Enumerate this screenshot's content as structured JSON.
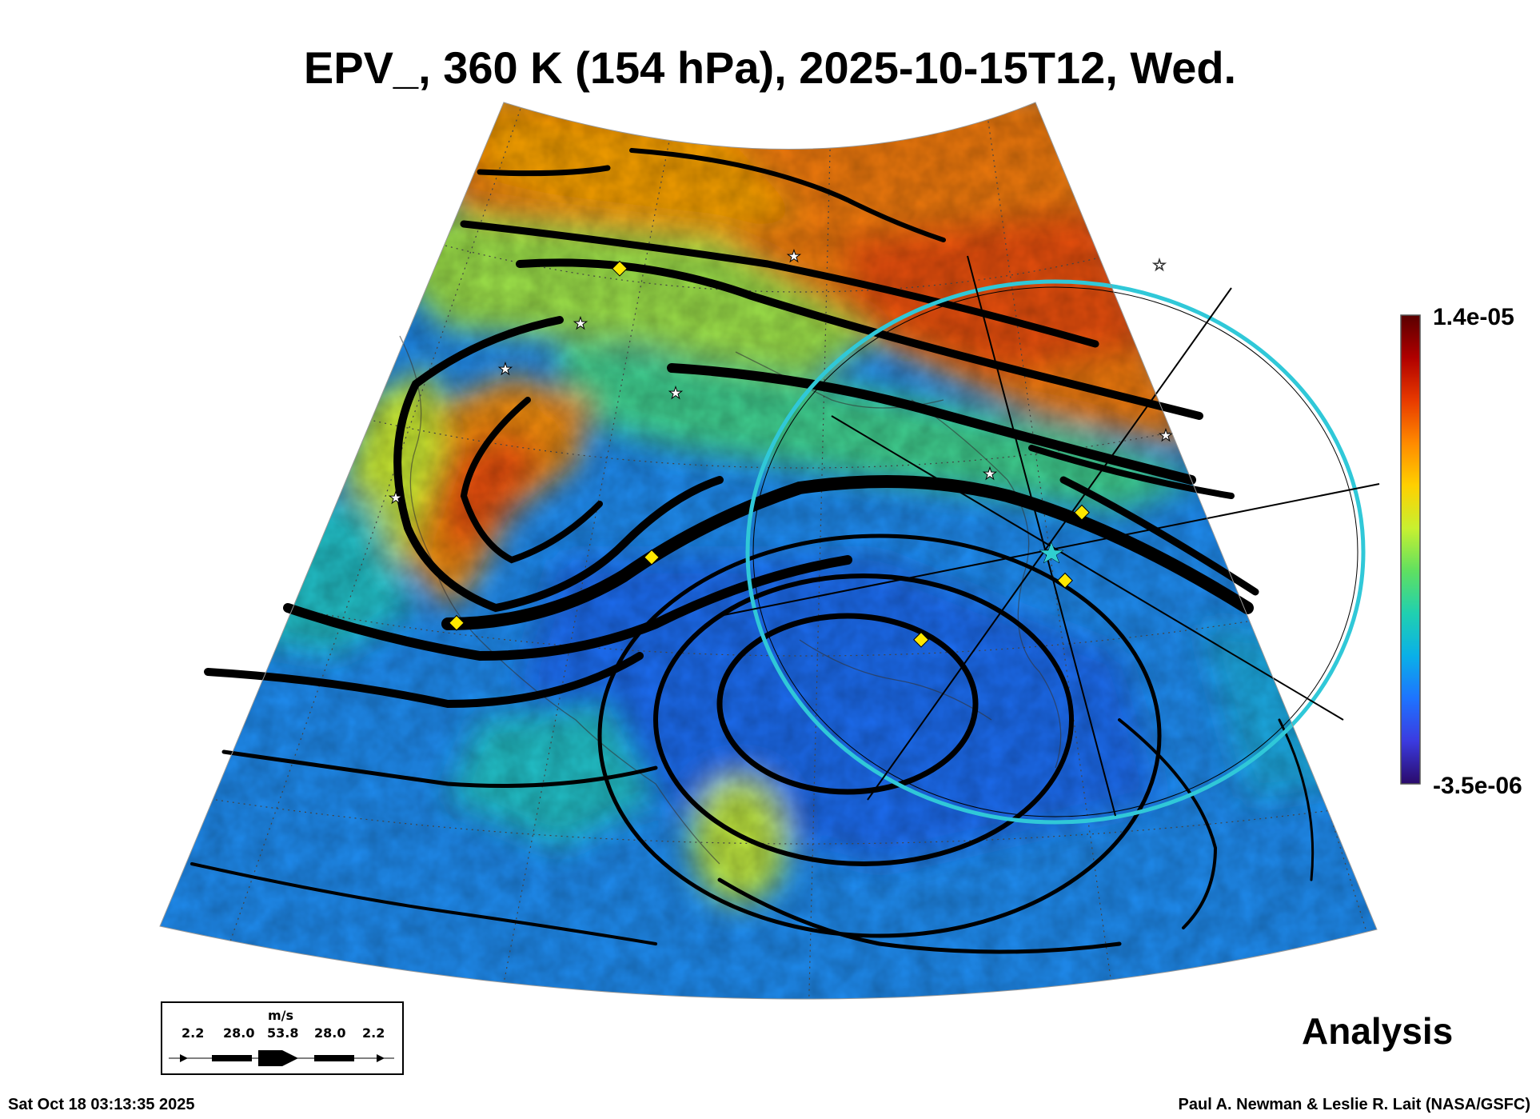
{
  "title": "EPV_, 360 K (154 hPa), 2025-10-15T12, Wed.",
  "colorbar": {
    "max_label": "1.4e-05",
    "min_label": "-3.5e-06",
    "colormap": [
      "#2a0a6a",
      "#3b3be0",
      "#1e73ff",
      "#0ab0e8",
      "#20d0b0",
      "#60e060",
      "#c8f030",
      "#ffd000",
      "#ff8a00",
      "#e83a00",
      "#b00000",
      "#5a0000"
    ]
  },
  "legend": {
    "unit": "m/s",
    "speeds": [
      "2.2",
      "28.0",
      "53.8",
      "28.0",
      "2.2"
    ]
  },
  "product_label": "Analysis",
  "footer": {
    "timestamp": "Sat Oct 18 03:13:35 2025",
    "credit": "Paul A. Newman & Leslie R. Lait (NASA/GSFC)"
  },
  "map": {
    "field": "EPV",
    "projection": "polar stereographic (sector)",
    "overlay": "streamlines",
    "marker_colors": {
      "star": "#ffffff",
      "diamond": "#ffe800",
      "ring": "#30c8d8",
      "center_star": "#30d0d0"
    }
  }
}
